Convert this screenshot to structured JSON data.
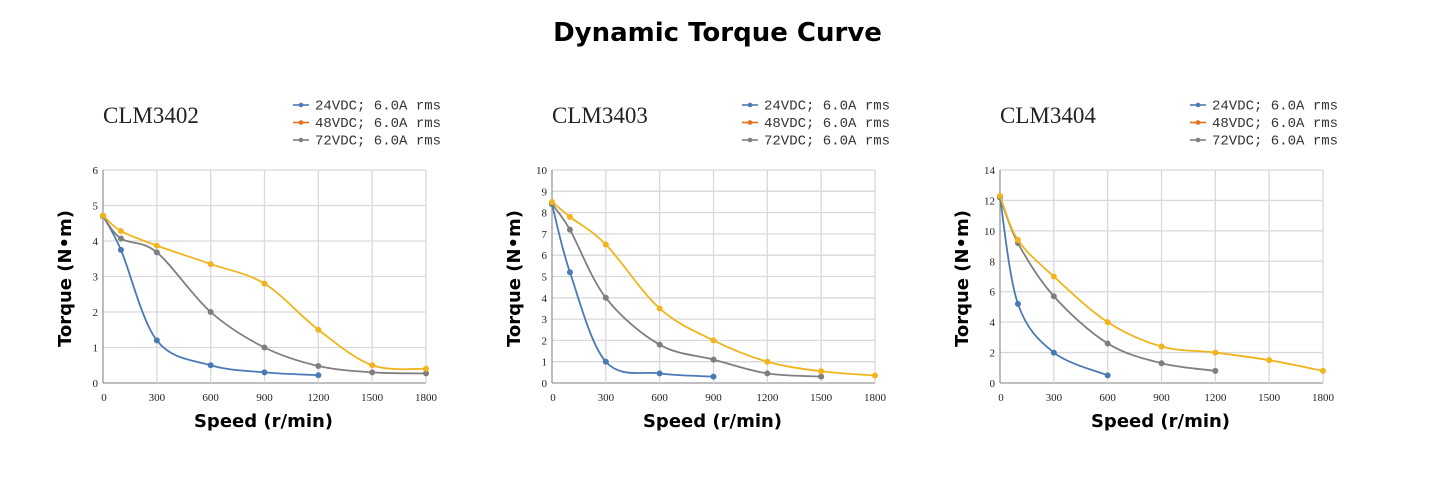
{
  "title": "Dynamic Torque Curve",
  "chart_data": [
    {
      "type": "line",
      "title": "CLM3402",
      "xlabel": "Speed (r/min)",
      "ylabel": "Torque (N•m)",
      "xlim": [
        0,
        1800
      ],
      "ylim": [
        0,
        6
      ],
      "xticks": [
        "0",
        "300",
        "600",
        "900",
        "1200",
        "1500",
        "1800"
      ],
      "yticks": [
        "0",
        "1",
        "2",
        "3",
        "4",
        "5",
        "6"
      ],
      "legend": [
        "24VDC; 6.0A rms",
        "48VDC; 6.0A rms",
        "72VDC; 6.0A rms"
      ],
      "legend_colors": [
        "#4a7ab5",
        "#e07020",
        "#7f7f7f"
      ],
      "series": [
        {
          "name": "24VDC; 6.0A rms",
          "color": "#4a7ab5",
          "x": [
            0,
            100,
            300,
            600,
            900,
            1200
          ],
          "y": [
            4.7,
            3.75,
            1.2,
            0.5,
            0.3,
            0.22
          ]
        },
        {
          "name": "72VDC; 6.0A rms",
          "color": "#7f7f7f",
          "x": [
            0,
            100,
            300,
            600,
            900,
            1200,
            1500,
            1800
          ],
          "y": [
            4.7,
            4.07,
            3.68,
            2.0,
            1.0,
            0.48,
            0.3,
            0.27
          ]
        },
        {
          "name": "48VDC; 6.0A rms",
          "color": "#f0b51e",
          "x": [
            0,
            100,
            300,
            600,
            900,
            1200,
            1500,
            1800
          ],
          "y": [
            4.72,
            4.28,
            3.87,
            3.35,
            2.8,
            1.5,
            0.5,
            0.4
          ]
        }
      ]
    },
    {
      "type": "line",
      "title": "CLM3403",
      "xlabel": "Speed (r/min)",
      "ylabel": "Torque (N•m)",
      "xlim": [
        0,
        1800
      ],
      "ylim": [
        0,
        10
      ],
      "xticks": [
        "0",
        "300",
        "600",
        "900",
        "1200",
        "1500",
        "1800"
      ],
      "yticks": [
        "0",
        "1",
        "2",
        "3",
        "4",
        "5",
        "6",
        "7",
        "8",
        "9",
        "10"
      ],
      "legend": [
        "24VDC; 6.0A rms",
        "48VDC; 6.0A rms",
        "72VDC; 6.0A rms"
      ],
      "legend_colors": [
        "#4a7ab5",
        "#e07020",
        "#7f7f7f"
      ],
      "series": [
        {
          "name": "24VDC; 6.0A rms",
          "color": "#4a7ab5",
          "x": [
            0,
            100,
            300,
            600,
            900
          ],
          "y": [
            8.4,
            5.2,
            1.0,
            0.45,
            0.3
          ]
        },
        {
          "name": "72VDC; 6.0A rms",
          "color": "#7f7f7f",
          "x": [
            0,
            100,
            300,
            600,
            900,
            1200,
            1500
          ],
          "y": [
            8.4,
            7.2,
            4.0,
            1.8,
            1.1,
            0.45,
            0.3
          ]
        },
        {
          "name": "48VDC; 6.0A rms",
          "color": "#f0b51e",
          "x": [
            0,
            100,
            300,
            600,
            900,
            1200,
            1500,
            1800
          ],
          "y": [
            8.5,
            7.8,
            6.5,
            3.5,
            2.0,
            1.0,
            0.55,
            0.35
          ]
        }
      ]
    },
    {
      "type": "line",
      "title": "CLM3404",
      "xlabel": "Speed (r/min)",
      "ylabel": "Torque (N•m)",
      "xlim": [
        0,
        1800
      ],
      "ylim": [
        0,
        14
      ],
      "xticks": [
        "0",
        "300",
        "600",
        "900",
        "1200",
        "1500",
        "1800"
      ],
      "yticks": [
        "0",
        "2",
        "4",
        "6",
        "8",
        "10",
        "12",
        "14"
      ],
      "legend": [
        "24VDC; 6.0A rms",
        "48VDC; 6.0A rms",
        "72VDC; 6.0A rms"
      ],
      "legend_colors": [
        "#4a7ab5",
        "#e07020",
        "#7f7f7f"
      ],
      "series": [
        {
          "name": "24VDC; 6.0A rms",
          "color": "#4a7ab5",
          "x": [
            0,
            100,
            300,
            600
          ],
          "y": [
            12.2,
            5.2,
            2.0,
            0.5
          ]
        },
        {
          "name": "72VDC; 6.0A rms",
          "color": "#7f7f7f",
          "x": [
            0,
            100,
            300,
            600,
            900,
            1200
          ],
          "y": [
            12.2,
            9.2,
            5.7,
            2.6,
            1.3,
            0.8
          ]
        },
        {
          "name": "48VDC; 6.0A rms",
          "color": "#f0b51e",
          "x": [
            0,
            100,
            300,
            600,
            900,
            1200,
            1500,
            1800
          ],
          "y": [
            12.3,
            9.4,
            7.0,
            4.0,
            2.4,
            2.0,
            1.5,
            0.8
          ]
        }
      ]
    }
  ]
}
